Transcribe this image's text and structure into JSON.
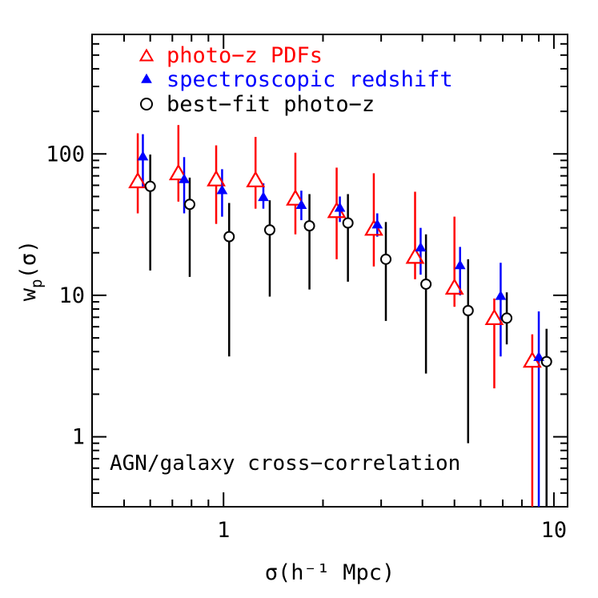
{
  "chart_data": {
    "type": "scatter",
    "title": "",
    "xlabel": "σ(h⁻¹ Mpc)",
    "ylabel": "w_p(σ)",
    "xscale": "log",
    "yscale": "log",
    "xlim": [
      0.4,
      11
    ],
    "ylim": [
      0.32,
      700
    ],
    "x_tick_labels": [
      "1",
      "10"
    ],
    "y_tick_labels": [
      "1",
      "10",
      "100"
    ],
    "annotation": "AGN/galaxy cross−correlation",
    "legend_position": "top-left",
    "series": [
      {
        "name": "photo−z PDFs",
        "color": "#ff0000",
        "marker": "open-triangle",
        "points": [
          {
            "x": 0.55,
            "y": 65,
            "lo": 38,
            "hi": 140
          },
          {
            "x": 0.73,
            "y": 74,
            "lo": 46,
            "hi": 160
          },
          {
            "x": 0.95,
            "y": 67,
            "lo": 32,
            "hi": 115
          },
          {
            "x": 1.25,
            "y": 66,
            "lo": 41,
            "hi": 132
          },
          {
            "x": 1.65,
            "y": 49,
            "lo": 27,
            "hi": 102
          },
          {
            "x": 2.2,
            "y": 40,
            "lo": 18,
            "hi": 80
          },
          {
            "x": 2.85,
            "y": 30,
            "lo": 16,
            "hi": 73
          },
          {
            "x": 3.8,
            "y": 19,
            "lo": 13,
            "hi": 54
          },
          {
            "x": 5.0,
            "y": 11.5,
            "lo": 8.3,
            "hi": 36
          },
          {
            "x": 6.6,
            "y": 7.0,
            "lo": 2.2,
            "hi": 9.5
          },
          {
            "x": 8.6,
            "y": 3.5,
            "lo": 0.32,
            "hi": 5.3
          }
        ]
      },
      {
        "name": "spectroscopic redshift",
        "color": "#0000ff",
        "marker": "filled-triangle",
        "points": [
          {
            "x": 0.57,
            "y": 97,
            "lo": 58,
            "hi": 138
          },
          {
            "x": 0.76,
            "y": 67,
            "lo": 38,
            "hi": 95
          },
          {
            "x": 0.99,
            "y": 56,
            "lo": 36,
            "hi": 78
          },
          {
            "x": 1.32,
            "y": 50,
            "lo": 41,
            "hi": 62
          },
          {
            "x": 1.72,
            "y": 44,
            "lo": 34,
            "hi": 55
          },
          {
            "x": 2.25,
            "y": 42,
            "lo": 33,
            "hi": 50
          },
          {
            "x": 2.92,
            "y": 32,
            "lo": 26,
            "hi": 38
          },
          {
            "x": 3.95,
            "y": 22,
            "lo": 14,
            "hi": 30
          },
          {
            "x": 5.2,
            "y": 16.5,
            "lo": 10,
            "hi": 22
          },
          {
            "x": 6.9,
            "y": 10,
            "lo": 3.7,
            "hi": 17
          },
          {
            "x": 9.0,
            "y": 3.7,
            "lo": 0.32,
            "hi": 7.7
          }
        ]
      },
      {
        "name": "best−fit photo−z",
        "color": "#000000",
        "marker": "open-circle",
        "points": [
          {
            "x": 0.6,
            "y": 59,
            "lo": 15,
            "hi": 99
          },
          {
            "x": 0.79,
            "y": 44,
            "lo": 13.5,
            "hi": 68
          },
          {
            "x": 1.04,
            "y": 26,
            "lo": 3.7,
            "hi": 45
          },
          {
            "x": 1.38,
            "y": 29,
            "lo": 9.8,
            "hi": 47
          },
          {
            "x": 1.82,
            "y": 31,
            "lo": 11,
            "hi": 52
          },
          {
            "x": 2.38,
            "y": 32.5,
            "lo": 12.5,
            "hi": 52
          },
          {
            "x": 3.1,
            "y": 18,
            "lo": 6.6,
            "hi": 33
          },
          {
            "x": 4.1,
            "y": 12,
            "lo": 2.8,
            "hi": 27
          },
          {
            "x": 5.5,
            "y": 7.8,
            "lo": 0.9,
            "hi": 18
          },
          {
            "x": 7.2,
            "y": 6.9,
            "lo": 4.5,
            "hi": 10.5
          },
          {
            "x": 9.5,
            "y": 3.4,
            "lo": 0.32,
            "hi": 5.8
          }
        ]
      }
    ]
  }
}
